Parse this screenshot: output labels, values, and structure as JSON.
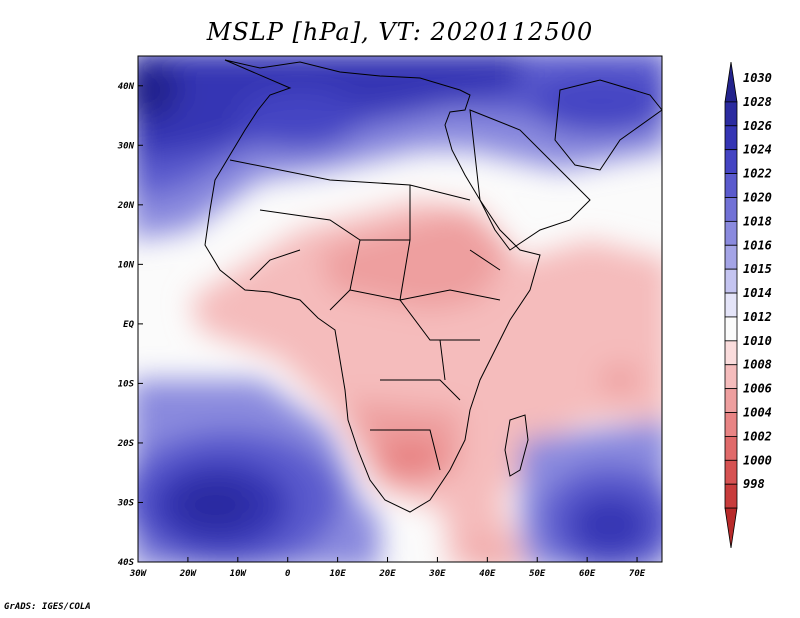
{
  "title": "MSLP [hPa], VT: 2020112500",
  "credit": "GrADS: IGES/COLA",
  "map": {
    "lon_range": [
      -30,
      75
    ],
    "lat_range": [
      -40,
      45
    ],
    "lon_ticks": [
      "30W",
      "20W",
      "10W",
      "0",
      "10E",
      "20E",
      "30E",
      "40E",
      "50E",
      "60E",
      "70E"
    ],
    "lon_values": [
      -30,
      -20,
      -10,
      0,
      10,
      20,
      30,
      40,
      50,
      60,
      70
    ],
    "lat_ticks": [
      "40N",
      "30N",
      "20N",
      "10N",
      "EQ",
      "10S",
      "20S",
      "30S",
      "40S"
    ],
    "lat_values": [
      40,
      30,
      20,
      10,
      0,
      -10,
      -20,
      -30,
      -40
    ]
  },
  "colorbar": {
    "levels": [
      "1030",
      "1028",
      "1026",
      "1024",
      "1022",
      "1020",
      "1018",
      "1016",
      "1015",
      "1014",
      "1012",
      "1010",
      "1008",
      "1006",
      "1004",
      "1002",
      "1000",
      "998"
    ],
    "colors": [
      "#23238c",
      "#2b2ba0",
      "#3535b4",
      "#4444c3",
      "#5a5acd",
      "#7171d6",
      "#8a8ade",
      "#a4a4e6",
      "#c4c4f0",
      "#e4e4f8",
      "#fbfbfb",
      "#fadcdc",
      "#f5bcbc",
      "#ee9f9f",
      "#e88484",
      "#e06a6a",
      "#d65252",
      "#c83c3c",
      "#b82a2a"
    ]
  }
}
